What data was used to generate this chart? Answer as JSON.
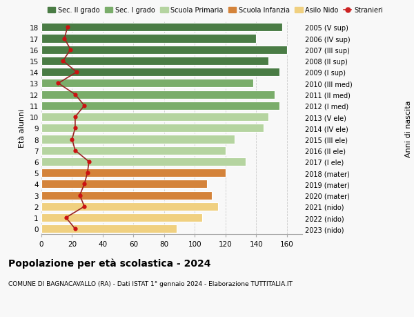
{
  "ages": [
    18,
    17,
    16,
    15,
    14,
    13,
    12,
    11,
    10,
    9,
    8,
    7,
    6,
    5,
    4,
    3,
    2,
    1,
    0
  ],
  "years": [
    "2005 (V sup)",
    "2006 (IV sup)",
    "2007 (III sup)",
    "2008 (II sup)",
    "2009 (I sup)",
    "2010 (III med)",
    "2011 (II med)",
    "2012 (I med)",
    "2013 (V ele)",
    "2014 (IV ele)",
    "2015 (III ele)",
    "2016 (II ele)",
    "2017 (I ele)",
    "2018 (mater)",
    "2019 (mater)",
    "2020 (mater)",
    "2021 (nido)",
    "2022 (nido)",
    "2023 (nido)"
  ],
  "bar_values": [
    157,
    140,
    160,
    148,
    155,
    138,
    152,
    155,
    148,
    145,
    126,
    120,
    133,
    120,
    108,
    111,
    115,
    105,
    88
  ],
  "bar_colors": [
    "#4a7c45",
    "#4a7c45",
    "#4a7c45",
    "#4a7c45",
    "#4a7c45",
    "#7aad6a",
    "#7aad6a",
    "#7aad6a",
    "#b5d4a0",
    "#b5d4a0",
    "#b5d4a0",
    "#b5d4a0",
    "#b5d4a0",
    "#d4833a",
    "#d4833a",
    "#d4833a",
    "#f0d080",
    "#f0d080",
    "#f0d080"
  ],
  "stranieri_values": [
    17,
    15,
    19,
    14,
    23,
    11,
    22,
    28,
    22,
    22,
    20,
    22,
    31,
    30,
    28,
    25,
    28,
    16,
    22
  ],
  "legend_labels": [
    "Sec. II grado",
    "Sec. I grado",
    "Scuola Primaria",
    "Scuola Infanzia",
    "Asilo Nido",
    "Stranieri"
  ],
  "legend_colors": [
    "#4a7c45",
    "#7aad6a",
    "#b5d4a0",
    "#d4833a",
    "#f0d080",
    "#cc2222"
  ],
  "title": "Popolazione per età scolastica - 2024",
  "subtitle": "COMUNE DI BAGNACAVALLO (RA) - Dati ISTAT 1° gennaio 2024 - Elaborazione TUTTITALIA.IT",
  "ylabel_left": "Età alunni",
  "ylabel_right": "Anni di nascita",
  "xlim": [
    0,
    170
  ],
  "xticks": [
    0,
    20,
    40,
    60,
    80,
    100,
    120,
    140,
    160
  ],
  "background_color": "#f8f8f8",
  "grid_color": "#cccccc",
  "line_color": "#992222",
  "dot_color": "#cc1111",
  "bar_height": 0.75
}
